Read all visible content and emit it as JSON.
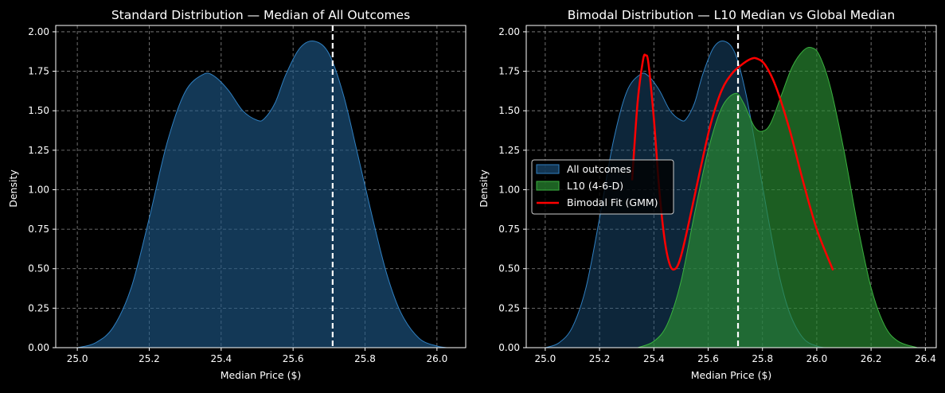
{
  "theme": {
    "background": "#000000",
    "text": "#ffffff",
    "grid": "#888888",
    "blue_fill": "#1f5a8a",
    "blue_line": "#2f7fc0",
    "green_fill": "#2a8a32",
    "green_line": "#3ab03f",
    "red": "#ff0000",
    "median_line": "#ffffff"
  },
  "chart_data": [
    {
      "type": "area",
      "title": "Standard Distribution — Median of All Outcomes",
      "xlabel": "Median Price ($)",
      "ylabel": "Density",
      "xlim": [
        24.94,
        26.08
      ],
      "ylim": [
        0,
        2.04
      ],
      "xticks": [
        25.0,
        25.2,
        25.4,
        25.6,
        25.8,
        26.0
      ],
      "xtick_labels": [
        "25.0",
        "25.2",
        "25.4",
        "25.6",
        "25.8",
        "26.0"
      ],
      "yticks": [
        0,
        0.25,
        0.5,
        0.75,
        1.0,
        1.25,
        1.5,
        1.75,
        2.0
      ],
      "ytick_labels": [
        "0.00",
        "0.25",
        "0.50",
        "0.75",
        "1.00",
        "1.25",
        "1.50",
        "1.75",
        "2.00"
      ],
      "grid": true,
      "median_x": 25.71,
      "series": [
        {
          "color": "#1f5a8a",
          "x": [
            25.0,
            25.05,
            25.1,
            25.15,
            25.2,
            25.25,
            25.3,
            25.35,
            25.38,
            25.42,
            25.46,
            25.5,
            25.52,
            25.55,
            25.58,
            25.62,
            25.66,
            25.7,
            25.74,
            25.78,
            25.82,
            25.86,
            25.9,
            25.95,
            26.0,
            26.03
          ],
          "y": [
            0.0,
            0.03,
            0.13,
            0.38,
            0.82,
            1.3,
            1.62,
            1.73,
            1.72,
            1.63,
            1.5,
            1.44,
            1.45,
            1.55,
            1.73,
            1.9,
            1.94,
            1.86,
            1.6,
            1.22,
            0.83,
            0.47,
            0.22,
            0.06,
            0.01,
            0.0
          ]
        }
      ]
    },
    {
      "type": "area",
      "title": "Bimodal Distribution — L10 Median vs Global Median",
      "xlabel": "Median Price ($)",
      "ylabel": "Density",
      "xlim": [
        24.93,
        26.44
      ],
      "ylim": [
        0,
        2.04
      ],
      "xticks": [
        25.0,
        25.2,
        25.4,
        25.6,
        25.8,
        26.0,
        26.2,
        26.4
      ],
      "xtick_labels": [
        "25.0",
        "25.2",
        "25.4",
        "25.6",
        "25.8",
        "26.0",
        "26.2",
        "26.4"
      ],
      "yticks": [
        0,
        0.25,
        0.5,
        0.75,
        1.0,
        1.25,
        1.5,
        1.75,
        2.0
      ],
      "ytick_labels": [
        "0.00",
        "0.25",
        "0.50",
        "0.75",
        "1.00",
        "1.25",
        "1.50",
        "1.75",
        "2.00"
      ],
      "grid": true,
      "median_x": 25.71,
      "legend_position": "center-left",
      "series": [
        {
          "name": "All outcomes",
          "kind": "area",
          "color": "#1f5a8a",
          "x": [
            25.0,
            25.05,
            25.1,
            25.15,
            25.2,
            25.25,
            25.3,
            25.35,
            25.38,
            25.42,
            25.46,
            25.5,
            25.52,
            25.55,
            25.58,
            25.62,
            25.66,
            25.7,
            25.74,
            25.78,
            25.82,
            25.86,
            25.9,
            25.95,
            26.0,
            26.03
          ],
          "y": [
            0.0,
            0.03,
            0.13,
            0.38,
            0.82,
            1.3,
            1.62,
            1.73,
            1.72,
            1.63,
            1.5,
            1.44,
            1.45,
            1.55,
            1.73,
            1.9,
            1.94,
            1.86,
            1.6,
            1.22,
            0.83,
            0.47,
            0.22,
            0.06,
            0.01,
            0.0
          ]
        },
        {
          "name": "L10 (4-6-D)",
          "kind": "area",
          "color": "#2a8a32",
          "x": [
            25.34,
            25.4,
            25.45,
            25.5,
            25.55,
            25.6,
            25.65,
            25.7,
            25.73,
            25.77,
            25.8,
            25.83,
            25.87,
            25.91,
            25.95,
            25.98,
            26.01,
            26.05,
            26.1,
            26.15,
            26.2,
            26.25,
            26.3,
            26.37
          ],
          "y": [
            0.0,
            0.04,
            0.15,
            0.42,
            0.85,
            1.25,
            1.52,
            1.61,
            1.55,
            1.4,
            1.37,
            1.42,
            1.6,
            1.78,
            1.88,
            1.9,
            1.85,
            1.65,
            1.25,
            0.78,
            0.38,
            0.14,
            0.04,
            0.0
          ]
        },
        {
          "name": "Bimodal Fit (GMM)",
          "kind": "line",
          "color": "#ff0000",
          "x": [
            25.32,
            25.34,
            25.36,
            25.37,
            25.38,
            25.4,
            25.42,
            25.44,
            25.46,
            25.48,
            25.5,
            25.53,
            25.57,
            25.61,
            25.65,
            25.69,
            25.73,
            25.76,
            25.78,
            25.81,
            25.85,
            25.9,
            25.95,
            26.0,
            26.06
          ],
          "y": [
            1.06,
            1.55,
            1.82,
            1.85,
            1.8,
            1.45,
            1.0,
            0.68,
            0.52,
            0.5,
            0.58,
            0.8,
            1.12,
            1.42,
            1.63,
            1.74,
            1.8,
            1.83,
            1.83,
            1.79,
            1.65,
            1.38,
            1.05,
            0.75,
            0.49
          ]
        }
      ]
    }
  ]
}
